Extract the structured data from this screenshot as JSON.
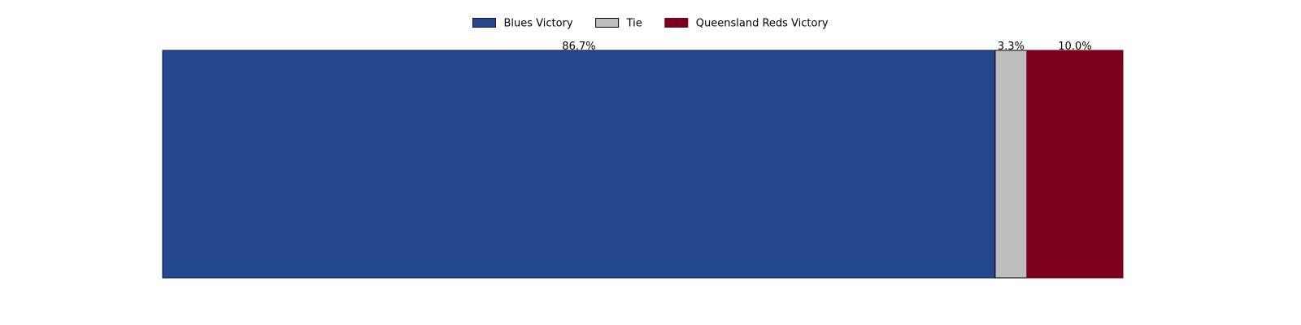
{
  "chart_data": {
    "type": "bar",
    "orientation": "horizontal-stacked",
    "title": "",
    "xlabel": "",
    "ylabel": "",
    "xlim": [
      0,
      100
    ],
    "grid": false,
    "legend_position": "top-center",
    "series": [
      {
        "name": "Blues Victory",
        "value": 86.7,
        "label": "86.7%",
        "color": "#25478C",
        "edge": "#0B1740"
      },
      {
        "name": "Tie",
        "value": 3.3,
        "label": "3.3%",
        "color": "#BEBEBE",
        "edge": "#000000"
      },
      {
        "name": "Queensland Reds Victory",
        "value": 10.0,
        "label": "10.0%",
        "color": "#7B001C",
        "edge": "#7B001C"
      }
    ]
  }
}
